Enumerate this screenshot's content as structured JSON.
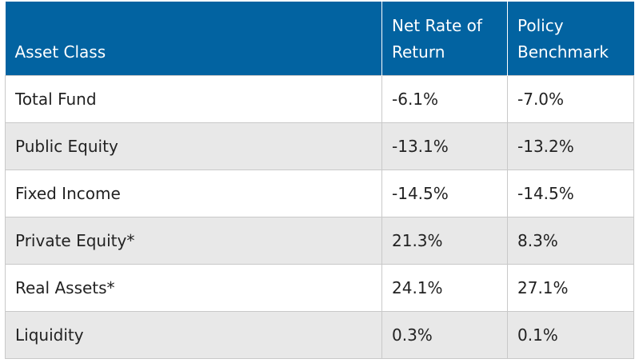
{
  "table": {
    "headers": [
      "Asset Class",
      "Net Rate of Return",
      "Policy Benchmark"
    ],
    "rows": [
      {
        "asset_class": "Total Fund",
        "net_return": "-6.1%",
        "benchmark": "-7.0%"
      },
      {
        "asset_class": "Public Equity",
        "net_return": "-13.1%",
        "benchmark": "-13.2%"
      },
      {
        "asset_class": "Fixed Income",
        "net_return": "-14.5%",
        "benchmark": "-14.5%"
      },
      {
        "asset_class": "Private Equity*",
        "net_return": "21.3%",
        "benchmark": "8.3%"
      },
      {
        "asset_class": "Real Assets*",
        "net_return": "24.1%",
        "benchmark": "27.1%"
      },
      {
        "asset_class": "Liquidity",
        "net_return": "0.3%",
        "benchmark": "0.1%"
      }
    ]
  },
  "colors": {
    "header_background": "#0263a1",
    "header_text": "#ffffff",
    "row_alt_background": "#e8e8e8",
    "border": "#c9c9c9"
  }
}
